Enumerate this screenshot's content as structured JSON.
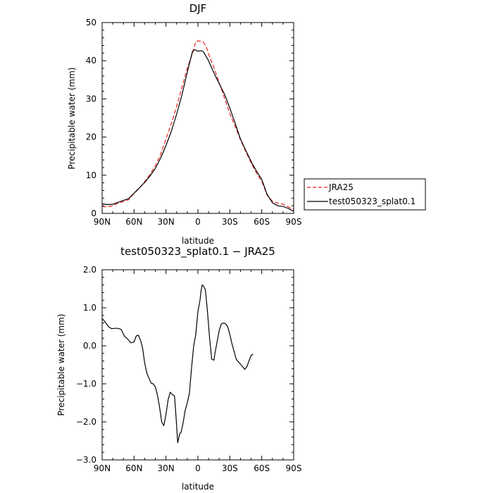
{
  "chart_data": [
    {
      "type": "line",
      "title": "DJF",
      "xlabel": "latitude",
      "ylabel": "Precipitable water (mm)",
      "xlim": [
        90,
        -90
      ],
      "ylim": [
        0,
        50
      ],
      "x_ticks": [
        90,
        60,
        30,
        0,
        -30,
        -60,
        -90
      ],
      "x_tick_labels": [
        "90N",
        "60N",
        "30N",
        "0",
        "30S",
        "60S",
        "90S"
      ],
      "y_ticks": [
        0,
        10,
        20,
        30,
        40,
        50
      ],
      "y_tick_labels": [
        "0",
        "10",
        "20",
        "30",
        "40",
        "50"
      ],
      "legend_position": "outside-right",
      "series": [
        {
          "name": "JRA25",
          "color": "#e8221b",
          "dash": "dashed",
          "points": [
            [
              90,
              1.8
            ],
            [
              85,
              1.7
            ],
            [
              80,
              2.0
            ],
            [
              75,
              2.7
            ],
            [
              70,
              3.1
            ],
            [
              65,
              3.6
            ],
            [
              60,
              5.2
            ],
            [
              55,
              6.6
            ],
            [
              50,
              8.3
            ],
            [
              45,
              10.2
            ],
            [
              40,
              12.5
            ],
            [
              35,
              15.5
            ],
            [
              30,
              19.5
            ],
            [
              25,
              23.5
            ],
            [
              20,
              28.0
            ],
            [
              15,
              33.0
            ],
            [
              10,
              38.0
            ],
            [
              5,
              42.0
            ],
            [
              2,
              45.0
            ],
            [
              0,
              45.2
            ],
            [
              -5,
              44.9
            ],
            [
              -8,
              43.5
            ],
            [
              -10,
              41.8
            ],
            [
              -15,
              38.2
            ],
            [
              -20,
              34.3
            ],
            [
              -25,
              30.2
            ],
            [
              -30,
              26.1
            ],
            [
              -35,
              22.8
            ],
            [
              -40,
              19.3
            ],
            [
              -45,
              16.2
            ],
            [
              -50,
              13.2
            ],
            [
              -55,
              10.6
            ],
            [
              -60,
              8.4
            ],
            [
              -65,
              4.8
            ],
            [
              -70,
              3.2
            ],
            [
              -75,
              2.7
            ],
            [
              -80,
              2.4
            ],
            [
              -85,
              1.7
            ],
            [
              -88,
              1.2
            ],
            [
              -90,
              1.1
            ]
          ]
        },
        {
          "name": "test050323_splat0.1",
          "color": "#000000",
          "dash": "solid",
          "points": [
            [
              90,
              2.5
            ],
            [
              85,
              2.3
            ],
            [
              80,
              2.4
            ],
            [
              75,
              2.9
            ],
            [
              70,
              3.4
            ],
            [
              65,
              3.9
            ],
            [
              60,
              5.3
            ],
            [
              55,
              6.7
            ],
            [
              50,
              8.1
            ],
            [
              45,
              9.8
            ],
            [
              40,
              11.8
            ],
            [
              35,
              14.5
            ],
            [
              30,
              17.8
            ],
            [
              25,
              21.5
            ],
            [
              20,
              26.0
            ],
            [
              15,
              31.0
            ],
            [
              10,
              37.0
            ],
            [
              5,
              42.5
            ],
            [
              3,
              42.9
            ],
            [
              0,
              42.5
            ],
            [
              -3,
              42.6
            ],
            [
              -5,
              42.4
            ],
            [
              -10,
              40.0
            ],
            [
              -15,
              36.8
            ],
            [
              -20,
              34.0
            ],
            [
              -25,
              31.2
            ],
            [
              -30,
              27.6
            ],
            [
              -35,
              23.6
            ],
            [
              -40,
              19.5
            ],
            [
              -45,
              16.5
            ],
            [
              -50,
              13.6
            ],
            [
              -55,
              11.1
            ],
            [
              -60,
              8.9
            ],
            [
              -65,
              5.0
            ],
            [
              -70,
              2.8
            ],
            [
              -75,
              2.0
            ],
            [
              -80,
              1.8
            ],
            [
              -85,
              1.3
            ],
            [
              -88,
              0.8
            ],
            [
              -90,
              0.6
            ]
          ]
        }
      ]
    },
    {
      "type": "line",
      "title": "test050323_splat0.1 − JRA25",
      "xlabel": "latitude",
      "ylabel": "Precipitable water (mm)",
      "xlim": [
        90,
        -90
      ],
      "ylim": [
        -3,
        2
      ],
      "x_ticks": [
        90,
        60,
        30,
        0,
        -30,
        -60,
        -90
      ],
      "x_tick_labels": [
        "90N",
        "60N",
        "30N",
        "0",
        "30S",
        "60S",
        "90S"
      ],
      "y_ticks": [
        -3,
        -2,
        -1,
        0,
        1,
        2
      ],
      "y_tick_labels": [
        "−3.0",
        "−2.0",
        "−1.0",
        "0.0",
        "1.0",
        "2.0"
      ],
      "series": [
        {
          "color": "#000000",
          "dash": "solid",
          "points": [
            [
              90,
              0.72
            ],
            [
              87,
              0.62
            ],
            [
              84,
              0.5
            ],
            [
              81,
              0.45
            ],
            [
              78,
              0.46
            ],
            [
              75,
              0.46
            ],
            [
              72,
              0.43
            ],
            [
              69,
              0.25
            ],
            [
              66,
              0.18
            ],
            [
              63,
              0.08
            ],
            [
              60,
              0.1
            ],
            [
              58,
              0.26
            ],
            [
              56,
              0.28
            ],
            [
              54,
              0.15
            ],
            [
              52,
              -0.05
            ],
            [
              50,
              -0.45
            ],
            [
              48,
              -0.72
            ],
            [
              46,
              -0.85
            ],
            [
              44,
              -0.98
            ],
            [
              42,
              -1.0
            ],
            [
              40,
              -1.08
            ],
            [
              38,
              -1.3
            ],
            [
              36,
              -1.62
            ],
            [
              34,
              -2.0
            ],
            [
              32,
              -2.1
            ],
            [
              30,
              -1.8
            ],
            [
              28,
              -1.42
            ],
            [
              26,
              -1.22
            ],
            [
              24,
              -1.28
            ],
            [
              22,
              -1.32
            ],
            [
              21,
              -1.7
            ],
            [
              20,
              -2.1
            ],
            [
              19,
              -2.55
            ],
            [
              18,
              -2.42
            ],
            [
              17,
              -2.3
            ],
            [
              16,
              -2.29
            ],
            [
              14,
              -2.05
            ],
            [
              12,
              -1.7
            ],
            [
              10,
              -1.5
            ],
            [
              8,
              -1.25
            ],
            [
              6,
              -0.6
            ],
            [
              4,
              0.0
            ],
            [
              2,
              0.3
            ],
            [
              0,
              0.9
            ],
            [
              -2,
              1.2
            ],
            [
              -3,
              1.45
            ],
            [
              -4,
              1.6
            ],
            [
              -5,
              1.58
            ],
            [
              -7,
              1.48
            ],
            [
              -9,
              0.9
            ],
            [
              -11,
              0.2
            ],
            [
              -13,
              -0.35
            ],
            [
              -15,
              -0.38
            ],
            [
              -16,
              -0.2
            ],
            [
              -18,
              0.1
            ],
            [
              -20,
              0.4
            ],
            [
              -22,
              0.57
            ],
            [
              -24,
              0.6
            ],
            [
              -26,
              0.58
            ],
            [
              -28,
              0.5
            ],
            [
              -30,
              0.3
            ],
            [
              -32,
              0.05
            ],
            [
              -34,
              -0.15
            ],
            [
              -36,
              -0.35
            ],
            [
              -38,
              -0.42
            ],
            [
              -40,
              -0.48
            ],
            [
              -42,
              -0.55
            ],
            [
              -44,
              -0.62
            ],
            [
              -46,
              -0.55
            ],
            [
              -48,
              -0.4
            ],
            [
              -50,
              -0.25
            ],
            [
              -52,
              -0.22
            ]
          ]
        }
      ]
    }
  ]
}
